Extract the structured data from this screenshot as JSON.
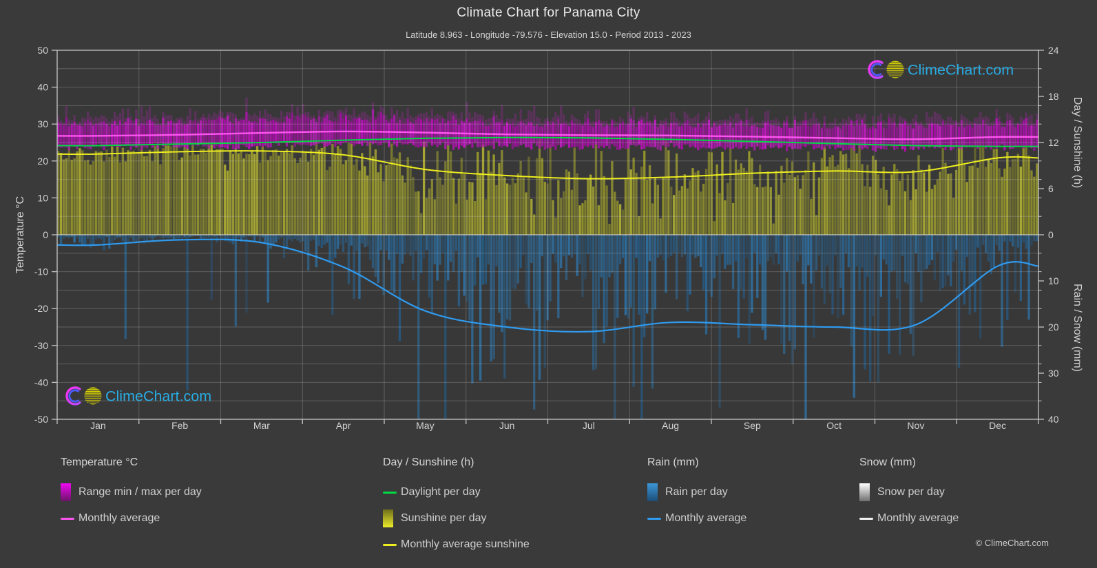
{
  "title": "Climate Chart for Panama City",
  "subtitle": "Latitude 8.963 - Longitude -79.576 - Elevation 15.0 - Period 2013 - 2023",
  "watermark": "ClimeChart.com",
  "copyright": "© ClimeChart.com",
  "axes": {
    "left_label": "Temperature °C",
    "right_top_label": "Day / Sunshine (h)",
    "right_bottom_label": "Rain / Snow (mm)",
    "left_ticks": [
      50,
      40,
      30,
      20,
      10,
      0,
      -10,
      -20,
      -30,
      -40,
      -50
    ],
    "right_top_ticks": [
      24,
      18,
      12,
      6,
      0
    ],
    "right_bottom_ticks": [
      10,
      20,
      30,
      40
    ]
  },
  "chart_data": {
    "type": "composite-climate",
    "months": [
      "Jan",
      "Feb",
      "Mar",
      "Apr",
      "May",
      "Jun",
      "Jul",
      "Aug",
      "Sep",
      "Oct",
      "Nov",
      "Dec"
    ],
    "temp_axis": {
      "min": -50,
      "max": 50,
      "unit": "°C"
    },
    "day_axis": {
      "min": 0,
      "max": 24,
      "unit": "h"
    },
    "rain_axis": {
      "min": 0,
      "max": 40,
      "unit": "mm",
      "direction": "down"
    },
    "series": {
      "temp_avg_c": [
        26.8,
        27.1,
        27.6,
        28.0,
        27.7,
        27.2,
        27.0,
        26.9,
        26.6,
        26.2,
        25.9,
        26.5
      ],
      "temp_daily_max_c": [
        30.2,
        30.6,
        31.2,
        31.5,
        30.8,
        30.2,
        30.0,
        30.0,
        29.8,
        29.6,
        29.6,
        30.0
      ],
      "temp_daily_min_c": [
        23.8,
        23.9,
        24.1,
        24.6,
        24.3,
        23.9,
        23.7,
        23.7,
        23.5,
        23.4,
        23.4,
        23.7
      ],
      "daylight_h": [
        11.6,
        11.8,
        12.0,
        12.3,
        12.55,
        12.65,
        12.6,
        12.4,
        12.15,
        11.85,
        11.6,
        11.5
      ],
      "sunshine_avg_h": [
        10.5,
        10.8,
        10.9,
        10.4,
        8.5,
        7.7,
        7.3,
        7.5,
        8.0,
        8.3,
        8.2,
        10.0
      ],
      "rain_avg_mm": [
        2.2,
        1.1,
        1.7,
        7.0,
        16.5,
        20.0,
        21.0,
        19.0,
        19.5,
        20.0,
        19.5,
        6.8
      ],
      "snow_avg_mm": [
        0,
        0,
        0,
        0,
        0,
        0,
        0,
        0,
        0,
        0,
        0,
        0
      ]
    }
  },
  "legend": {
    "sections": [
      {
        "title": "Temperature °C",
        "items": [
          {
            "label": "Range min / max per day"
          },
          {
            "label": "Monthly average"
          }
        ]
      },
      {
        "title": "Day / Sunshine (h)",
        "items": [
          {
            "label": "Daylight per day"
          },
          {
            "label": "Sunshine per day"
          },
          {
            "label": "Monthly average sunshine"
          }
        ]
      },
      {
        "title": "Rain (mm)",
        "items": [
          {
            "label": "Rain per day"
          },
          {
            "label": "Monthly average"
          }
        ]
      },
      {
        "title": "Snow (mm)",
        "items": [
          {
            "label": "Snow per day"
          },
          {
            "label": "Monthly average"
          }
        ]
      }
    ]
  },
  "colors": {
    "background": "#3a3a3a",
    "plot_background": "#383838",
    "text": "#d2d2d2",
    "axis": "#c6c6c6",
    "grid": "#cdcdcd",
    "zero_line": "#dcdcdc",
    "temp_range_fill": "#bb12bb",
    "temp_avg_line": "#ff55f0",
    "daylight_line": "#00d944",
    "sunshine_fill": "#a3a32f",
    "sunshine_avg_line": "#eded1f",
    "rain_fill": "#2673af",
    "rain_avg_line": "#2f9bf0",
    "logo_text": "#29abe2",
    "logo_yellow": "#ddd800",
    "logo_magenta": "#ff2ff2",
    "logo_blue": "#4f5bff"
  }
}
